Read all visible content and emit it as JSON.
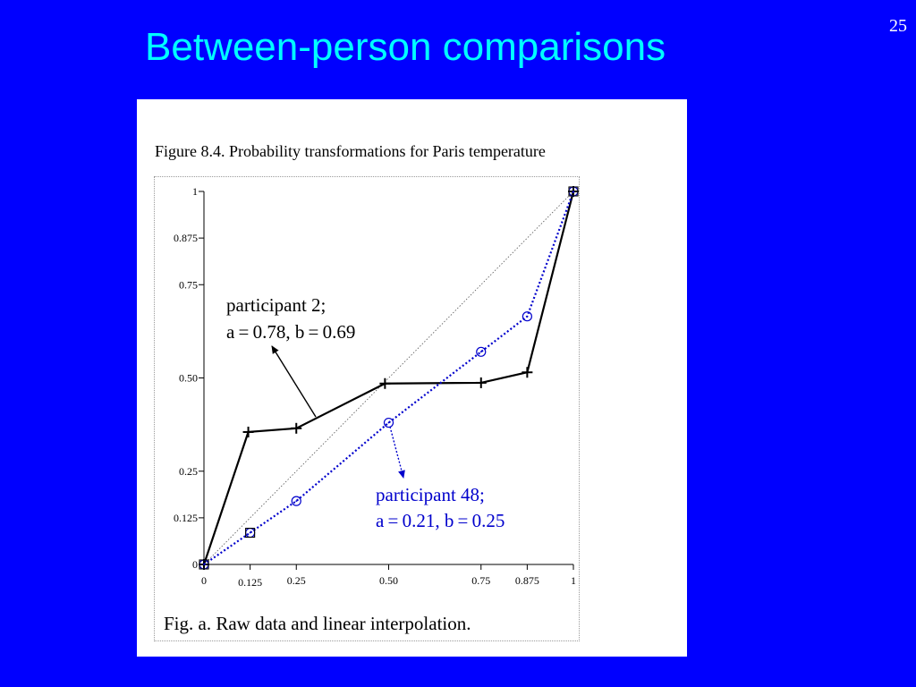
{
  "slide": {
    "title": "Between-person comparisons",
    "page_number": "25"
  },
  "colors": {
    "background": "#0000ff",
    "title": "#00ffff",
    "participant_48": "#0000cc",
    "participant_2": "#000000"
  },
  "chart_data": {
    "type": "line",
    "title": "Figure 8.4.  Probability transformations for Paris temperature",
    "subcaption": "Fig. a. Raw data and linear interpolation.",
    "xlabel": "",
    "ylabel": "",
    "xlim": [
      0,
      1
    ],
    "ylim": [
      0,
      1
    ],
    "x_ticks": [
      {
        "value": 0,
        "label": "0"
      },
      {
        "value": 0.125,
        "label": "0.125"
      },
      {
        "value": 0.25,
        "label": "0.25"
      },
      {
        "value": 0.5,
        "label": "0.50"
      },
      {
        "value": 0.75,
        "label": "0.75"
      },
      {
        "value": 0.875,
        "label": "0.875"
      },
      {
        "value": 1,
        "label": "1"
      }
    ],
    "y_ticks": [
      {
        "value": 0,
        "label": "0"
      },
      {
        "value": 0.125,
        "label": "0.125"
      },
      {
        "value": 0.25,
        "label": "0.25"
      },
      {
        "value": 0.5,
        "label": "0.50"
      },
      {
        "value": 0.75,
        "label": "0.75"
      },
      {
        "value": 0.875,
        "label": "0.875"
      },
      {
        "value": 1,
        "label": "1"
      }
    ],
    "diagonal": true,
    "series": [
      {
        "line1": "participant 2;",
        "line2": "a = 0.78, b = 0.69",
        "marker": "plus",
        "line_style": "solid",
        "x": [
          0,
          0.12,
          0.25,
          0.49,
          0.75,
          0.875,
          1
        ],
        "y": [
          0,
          0.355,
          0.365,
          0.485,
          0.487,
          0.515,
          1
        ]
      },
      {
        "line1": "participant 48;",
        "line2": "a = 0.21, b = 0.25",
        "marker": "circle",
        "line_style": "dotted",
        "x": [
          0,
          0.125,
          0.25,
          0.5,
          0.75,
          0.875,
          1
        ],
        "y": [
          0,
          0.085,
          0.17,
          0.38,
          0.57,
          0.665,
          1
        ]
      }
    ]
  }
}
